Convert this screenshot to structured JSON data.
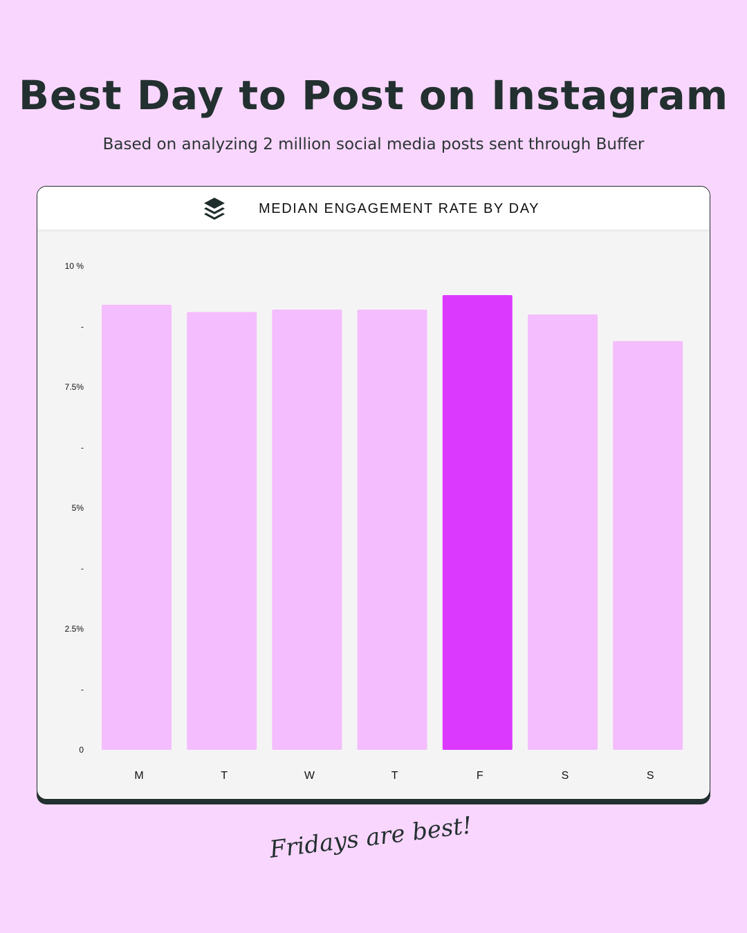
{
  "header": {
    "title": "Best Day to Post on Instagram",
    "subtitle": "Based on analyzing 2 million social media posts sent through Buffer"
  },
  "card": {
    "title": "MEDIAN ENGAGEMENT RATE BY DAY",
    "logo": "buffer-layers-icon"
  },
  "footer": {
    "note": "Fridays are best!"
  },
  "colors": {
    "background": "#f9d6fd",
    "bar": "#f4bdfd",
    "highlight": "#dc39fe",
    "text": "#233030"
  },
  "chart_data": {
    "type": "bar",
    "title": "MEDIAN ENGAGEMENT RATE BY DAY",
    "categories": [
      "M",
      "T",
      "W",
      "T",
      "F",
      "S",
      "S"
    ],
    "values": [
      9.2,
      9.05,
      9.1,
      9.1,
      9.4,
      9.0,
      8.45
    ],
    "highlight_index": 4,
    "ylim": [
      0,
      10
    ],
    "yticks": [
      {
        "v": 10,
        "label": "10 %"
      },
      {
        "v": 8.75,
        "label": "-"
      },
      {
        "v": 7.5,
        "label": "7.5%"
      },
      {
        "v": 6.25,
        "label": "-"
      },
      {
        "v": 5,
        "label": "5%"
      },
      {
        "v": 3.75,
        "label": "-"
      },
      {
        "v": 2.5,
        "label": "2.5%"
      },
      {
        "v": 1.25,
        "label": "-"
      },
      {
        "v": 0,
        "label": "0"
      }
    ],
    "xlabel": "",
    "ylabel": "",
    "grid": false
  }
}
